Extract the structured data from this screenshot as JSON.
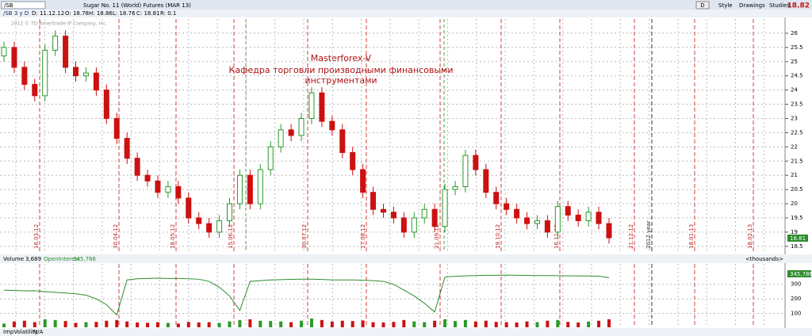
{
  "toolbar": {
    "symbol": "/SB",
    "description": "Sugar No. 11 (World)  Futures (MAR 13)",
    "last": "18.82",
    "period": "D",
    "style": "Style",
    "drawings": "Drawings",
    "studies": "Studies"
  },
  "info": {
    "chart": "/SB 3 y D",
    "date": "D: 11.12.12",
    "open": "O: 18.78",
    "high": "H: 18.86",
    "low": "L: 18.76",
    "close": "C: 18.81",
    "range": "R: 0.1"
  },
  "copyright": "2012 © TD Ameritrade IP Company, Inc.",
  "annotation": [
    "Masterforex-V",
    "Кафедра торговли производными финансовыми",
    "инструментами"
  ],
  "price_label": "18.81",
  "lower_header": {
    "volume": "Volume",
    "volume_value": "3,689",
    "oi": "OpenInterest",
    "oi_value": "345,786",
    "units": "<thousands>",
    "oi_label": "345,786"
  },
  "bottom_tab": {
    "name": "ImpVolatility",
    "value": "N/A"
  },
  "chart_data": {
    "type": "candlestick",
    "ylim": [
      18.3,
      26.5
    ],
    "yticks": [
      18.5,
      19,
      19.5,
      20,
      20.5,
      21,
      21.5,
      22,
      22.5,
      23,
      23.5,
      24,
      24.5,
      25,
      25.5,
      26
    ],
    "up_color": "#2a9a2a",
    "down_color": "#cc1111",
    "date_labels": [
      "16.03.12",
      "30.04.12",
      "18.05.12",
      "15.06.12",
      "30.07.12",
      "17.08.12",
      "21.09.12",
      "19.10.12",
      "16.11.12",
      "21.12.12",
      "2012 year",
      "18.01.13",
      "18.02.13"
    ],
    "candles": [
      [
        25.2,
        25.7,
        25.0,
        25.5
      ],
      [
        25.5,
        25.7,
        24.6,
        24.8
      ],
      [
        24.8,
        25.0,
        24.0,
        24.2
      ],
      [
        24.2,
        24.4,
        23.6,
        23.8
      ],
      [
        23.8,
        25.6,
        23.6,
        25.4
      ],
      [
        25.4,
        26.1,
        25.2,
        25.9
      ],
      [
        25.9,
        26.1,
        24.6,
        24.8
      ],
      [
        24.8,
        25.0,
        24.3,
        24.5
      ],
      [
        24.5,
        24.8,
        24.3,
        24.6
      ],
      [
        24.6,
        24.8,
        23.8,
        24.0
      ],
      [
        24.0,
        24.2,
        22.8,
        23.0
      ],
      [
        23.0,
        23.2,
        22.1,
        22.3
      ],
      [
        22.3,
        22.5,
        21.4,
        21.6
      ],
      [
        21.6,
        21.8,
        20.8,
        21.0
      ],
      [
        21.0,
        21.2,
        20.6,
        20.8
      ],
      [
        20.8,
        21.0,
        20.2,
        20.4
      ],
      [
        20.4,
        20.8,
        20.2,
        20.6
      ],
      [
        20.6,
        20.8,
        20.0,
        20.2
      ],
      [
        20.2,
        20.4,
        19.3,
        19.5
      ],
      [
        19.5,
        19.7,
        19.1,
        19.3
      ],
      [
        19.3,
        19.5,
        18.8,
        19.0
      ],
      [
        19.0,
        19.6,
        18.8,
        19.4
      ],
      [
        19.4,
        20.2,
        19.2,
        20.0
      ],
      [
        20.0,
        21.2,
        19.8,
        21.0
      ],
      [
        21.0,
        21.2,
        19.8,
        20.0
      ],
      [
        20.0,
        21.4,
        19.8,
        21.2
      ],
      [
        21.2,
        22.2,
        21.0,
        22.0
      ],
      [
        22.0,
        22.8,
        21.8,
        22.6
      ],
      [
        22.6,
        22.8,
        22.2,
        22.4
      ],
      [
        22.4,
        23.2,
        22.2,
        23.0
      ],
      [
        23.0,
        24.1,
        22.8,
        23.9
      ],
      [
        23.9,
        24.1,
        22.7,
        22.9
      ],
      [
        22.9,
        23.1,
        22.4,
        22.6
      ],
      [
        22.6,
        22.8,
        21.6,
        21.8
      ],
      [
        21.8,
        22.0,
        21.0,
        21.2
      ],
      [
        21.2,
        21.4,
        20.2,
        20.4
      ],
      [
        20.4,
        20.6,
        19.6,
        19.8
      ],
      [
        19.8,
        20.0,
        19.5,
        19.7
      ],
      [
        19.7,
        19.9,
        19.3,
        19.5
      ],
      [
        19.5,
        19.7,
        18.8,
        19.0
      ],
      [
        19.0,
        19.7,
        18.8,
        19.5
      ],
      [
        19.5,
        20.0,
        19.3,
        19.8
      ],
      [
        19.8,
        20.0,
        19.0,
        19.2
      ],
      [
        19.2,
        20.7,
        19.0,
        20.5
      ],
      [
        20.5,
        20.8,
        20.3,
        20.6
      ],
      [
        20.6,
        21.9,
        20.4,
        21.7
      ],
      [
        21.7,
        21.9,
        21.0,
        21.2
      ],
      [
        21.2,
        21.4,
        20.2,
        20.4
      ],
      [
        20.4,
        20.6,
        19.8,
        20.0
      ],
      [
        20.0,
        20.2,
        19.6,
        19.8
      ],
      [
        19.8,
        20.0,
        19.3,
        19.5
      ],
      [
        19.5,
        19.7,
        19.1,
        19.3
      ],
      [
        19.3,
        19.6,
        19.1,
        19.4
      ],
      [
        19.4,
        19.6,
        18.8,
        19.0
      ],
      [
        19.0,
        20.1,
        18.8,
        19.9
      ],
      [
        19.9,
        20.1,
        19.4,
        19.6
      ],
      [
        19.6,
        19.8,
        19.2,
        19.4
      ],
      [
        19.4,
        19.9,
        19.2,
        19.7
      ],
      [
        19.7,
        19.9,
        19.1,
        19.3
      ],
      [
        19.3,
        19.5,
        18.6,
        18.8
      ]
    ],
    "volume_ylim": [
      5,
      440
    ],
    "volume_yticks": [
      100,
      200,
      300
    ],
    "oi_color": "#2e8b2e",
    "volume": [
      30,
      45,
      50,
      40,
      60,
      55,
      48,
      35,
      40,
      42,
      50,
      55,
      45,
      38,
      36,
      40,
      35,
      30,
      42,
      38,
      40,
      35,
      45,
      55,
      60,
      50,
      48,
      45,
      40,
      50,
      65,
      55,
      45,
      50,
      48,
      52,
      40,
      38,
      42,
      55,
      45,
      40,
      50,
      60,
      48,
      55,
      45,
      50,
      42,
      40,
      38,
      45,
      40,
      50,
      55,
      42,
      38,
      45,
      50,
      60
    ],
    "open_interest": [
      260,
      258,
      255,
      256,
      250,
      245,
      240,
      235,
      225,
      200,
      160,
      90,
      330,
      338,
      340,
      342,
      340,
      340,
      338,
      335,
      320,
      280,
      220,
      120,
      320,
      325,
      330,
      332,
      334,
      335,
      335,
      333,
      330,
      330,
      330,
      328,
      325,
      320,
      300,
      260,
      220,
      170,
      110,
      350,
      355,
      358,
      360,
      362,
      362,
      363,
      362,
      361,
      360,
      360,
      359,
      358,
      358,
      357,
      356,
      345.786
    ]
  }
}
